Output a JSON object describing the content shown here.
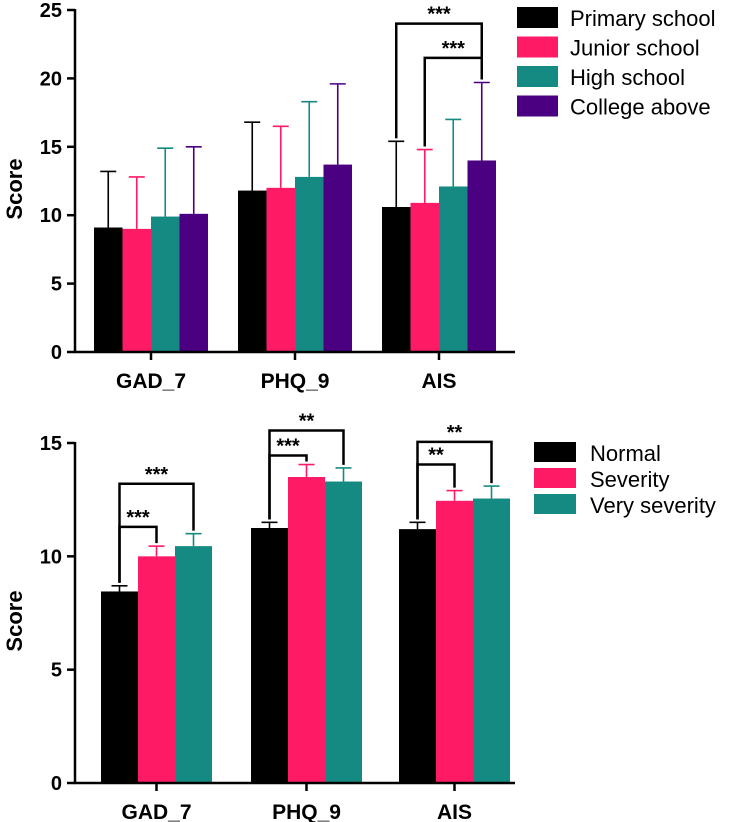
{
  "chart_data": [
    {
      "type": "bar",
      "title": "",
      "xlabel": "",
      "ylabel": "Score",
      "ylim": [
        0,
        25
      ],
      "yticks": [
        0,
        5,
        10,
        15,
        20,
        25
      ],
      "ytick_labels": [
        "0",
        "5",
        "10",
        "15",
        "20",
        "25"
      ],
      "categories": [
        "GAD_7",
        "PHQ_9",
        "AIS"
      ],
      "legend_position": "top-right",
      "series": [
        {
          "name": "Primary school",
          "color": "#000000",
          "values": [
            9.1,
            11.8,
            10.6
          ],
          "errors": [
            4.1,
            5.0,
            4.8
          ]
        },
        {
          "name": "Junior school",
          "color": "#ff1a66",
          "values": [
            9.0,
            12.0,
            10.9
          ],
          "errors": [
            3.8,
            4.5,
            3.9
          ]
        },
        {
          "name": "High school",
          "color": "#148a82",
          "values": [
            9.9,
            12.8,
            12.1
          ],
          "errors": [
            5.0,
            5.5,
            4.9
          ]
        },
        {
          "name": "College above",
          "color": "#4b0082",
          "values": [
            10.1,
            13.7,
            14.0
          ],
          "errors": [
            4.9,
            5.9,
            5.7
          ]
        }
      ],
      "annotations": [
        {
          "category": "AIS",
          "from_series": 0,
          "to_series": 3,
          "text": "***",
          "level": 24.0
        },
        {
          "category": "AIS",
          "from_series": 1,
          "to_series": 3,
          "text": "***",
          "level": 21.5
        }
      ]
    },
    {
      "type": "bar",
      "title": "",
      "xlabel": "",
      "ylabel": "Score",
      "ylim": [
        0,
        15
      ],
      "yticks": [
        0,
        5,
        10,
        15
      ],
      "ytick_labels": [
        "0",
        "5",
        "10",
        "15"
      ],
      "categories": [
        "GAD_7",
        "PHQ_9",
        "AIS"
      ],
      "legend_position": "top-right",
      "series": [
        {
          "name": "Normal",
          "color": "#000000",
          "values": [
            8.45,
            11.25,
            11.2
          ],
          "errors": [
            0.25,
            0.25,
            0.3
          ]
        },
        {
          "name": "Severity",
          "color": "#ff1a66",
          "values": [
            10.0,
            13.5,
            12.45
          ],
          "errors": [
            0.45,
            0.55,
            0.45
          ]
        },
        {
          "name": "Very severity",
          "color": "#148a82",
          "values": [
            10.45,
            13.3,
            12.55
          ],
          "errors": [
            0.55,
            0.6,
            0.55
          ]
        }
      ],
      "annotations": [
        {
          "category": "GAD_7",
          "from_series": 0,
          "to_series": 1,
          "text": "***",
          "level": 11.3
        },
        {
          "category": "GAD_7",
          "from_series": 0,
          "to_series": 2,
          "text": "***",
          "level": 13.2
        },
        {
          "category": "PHQ_9",
          "from_series": 0,
          "to_series": 1,
          "text": "***",
          "level": 14.45
        },
        {
          "category": "PHQ_9",
          "from_series": 0,
          "to_series": 2,
          "text": "**",
          "level": 15.55
        },
        {
          "category": "AIS",
          "from_series": 0,
          "to_series": 1,
          "text": "**",
          "level": 14.05
        },
        {
          "category": "AIS",
          "from_series": 0,
          "to_series": 2,
          "text": "**",
          "level": 15.05
        }
      ]
    }
  ]
}
